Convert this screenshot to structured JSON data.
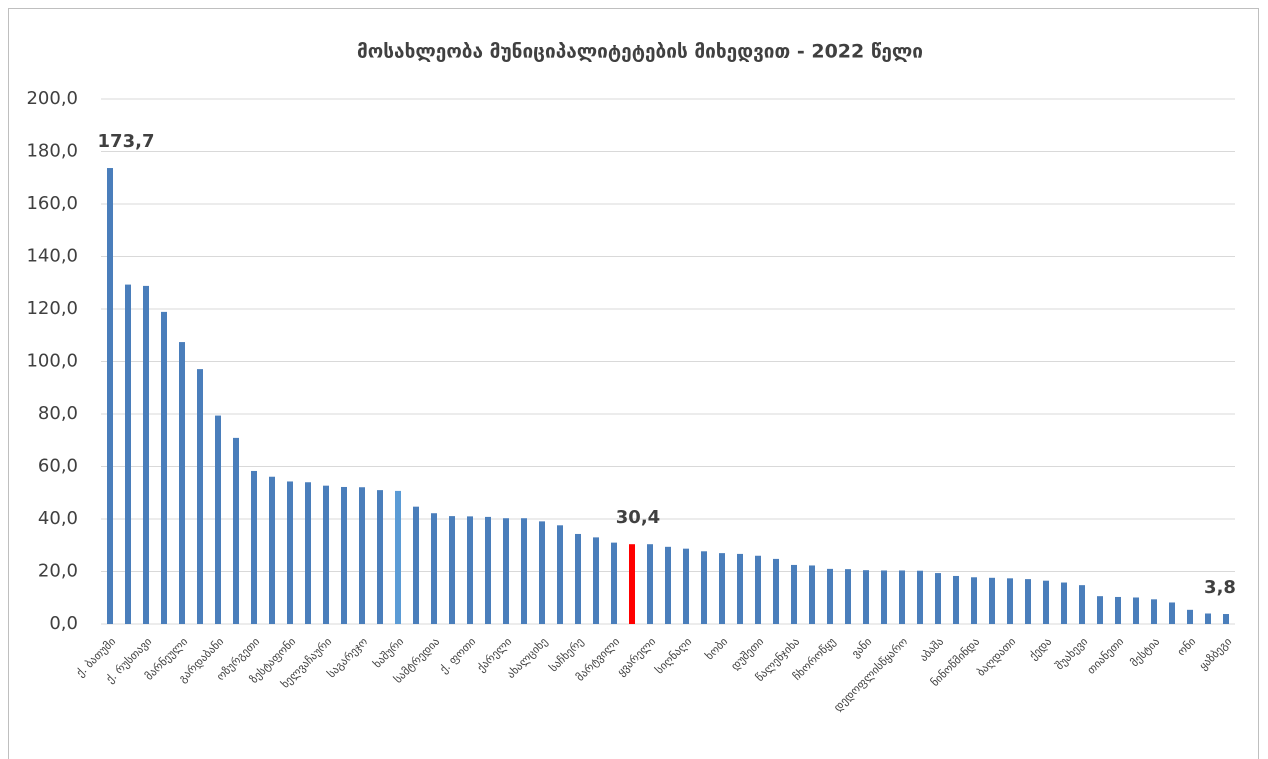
{
  "chart_data": {
    "type": "bar",
    "title": "მოსახლეობა მუნიციპალიტეტების მიხედვით - 2022 წელი",
    "categories": [
      "ქ. ბათუმი",
      null,
      "ქ. რუსთავი",
      null,
      "მარნეული",
      null,
      "გარდაბანი",
      null,
      "ოზურგეთი",
      null,
      "ზესტაფონი",
      null,
      "ხელვაჩაური",
      null,
      "საგარეჯო",
      null,
      "ხაშური",
      null,
      "სამტრედია",
      null,
      "ქ. ფოთი",
      null,
      "ქარელი",
      null,
      "ახალციხე",
      null,
      "საჩხერე",
      null,
      "მარტვილი",
      null,
      "ყვარელი",
      null,
      "სიღნაღი",
      null,
      "ხობი",
      null,
      "დუშეთი",
      null,
      "წალენჯიხა",
      null,
      "ჩხოროწყუ",
      null,
      "ვანი",
      null,
      "დედოფლისწყარო",
      null,
      "აბაშა",
      null,
      "ნინოწმინდა",
      null,
      "ბაღდათი",
      null,
      "ქედა",
      null,
      "შუახევი",
      null,
      "თიანეთი",
      null,
      "მესტია",
      null,
      "ონი",
      null,
      "ყაზბეგი"
    ],
    "values": [
      173.7,
      129.3,
      128.8,
      118.9,
      107.4,
      97.1,
      79.4,
      70.9,
      58.3,
      56.1,
      54.3,
      54.0,
      52.7,
      52.2,
      52.1,
      51.0,
      50.7,
      44.7,
      42.2,
      41.1,
      41.0,
      40.8,
      40.3,
      40.3,
      39.1,
      37.6,
      34.3,
      33.0,
      31.0,
      30.4,
      30.4,
      29.4,
      28.7,
      27.7,
      27.0,
      26.7,
      26.0,
      24.8,
      22.5,
      22.3,
      21.0,
      20.9,
      20.5,
      20.4,
      20.4,
      20.3,
      19.4,
      18.3,
      17.8,
      17.6,
      17.4,
      17.1,
      16.5,
      15.8,
      14.8,
      10.6,
      10.3,
      10.1,
      9.4,
      8.2,
      5.4,
      4.0,
      3.8
    ],
    "value_labels": [
      "173,7",
      null,
      null,
      null,
      null,
      null,
      null,
      null,
      null,
      null,
      null,
      null,
      null,
      null,
      null,
      null,
      null,
      null,
      null,
      null,
      null,
      null,
      null,
      null,
      null,
      null,
      null,
      null,
      null,
      "30,4",
      null,
      null,
      null,
      null,
      null,
      null,
      null,
      null,
      null,
      null,
      null,
      null,
      null,
      null,
      null,
      null,
      null,
      null,
      null,
      null,
      null,
      null,
      null,
      null,
      null,
      null,
      null,
      null,
      null,
      null,
      null,
      null,
      "3,8"
    ],
    "colors": [
      "#4a7ebb",
      "#4a7ebb",
      "#4a7ebb",
      "#4a7ebb",
      "#4a7ebb",
      "#4a7ebb",
      "#4a7ebb",
      "#4a7ebb",
      "#4a7ebb",
      "#4a7ebb",
      "#4a7ebb",
      "#4a7ebb",
      "#4a7ebb",
      "#4a7ebb",
      "#4a7ebb",
      "#4a7ebb",
      "#5b9bd5",
      "#4a7ebb",
      "#4a7ebb",
      "#4a7ebb",
      "#4a7ebb",
      "#4a7ebb",
      "#4a7ebb",
      "#4a7ebb",
      "#4a7ebb",
      "#4a7ebb",
      "#4a7ebb",
      "#4a7ebb",
      "#4a7ebb",
      "#ff0000",
      "#4a7ebb",
      "#4a7ebb",
      "#4a7ebb",
      "#4a7ebb",
      "#4a7ebb",
      "#4a7ebb",
      "#4a7ebb",
      "#4a7ebb",
      "#4a7ebb",
      "#4a7ebb",
      "#4a7ebb",
      "#4a7ebb",
      "#4a7ebb",
      "#4a7ebb",
      "#4a7ebb",
      "#4a7ebb",
      "#4a7ebb",
      "#4a7ebb",
      "#4a7ebb",
      "#4a7ebb",
      "#4a7ebb",
      "#4a7ebb",
      "#4a7ebb",
      "#4a7ebb",
      "#4a7ebb",
      "#4a7ebb",
      "#4a7ebb",
      "#4a7ebb",
      "#4a7ebb",
      "#4a7ebb",
      "#4a7ebb",
      "#4a7ebb",
      "#4a7ebb"
    ],
    "ylim": [
      0,
      200
    ],
    "yticks": [
      {
        "value": 0,
        "label": "0,0"
      },
      {
        "value": 20,
        "label": "20,0"
      },
      {
        "value": 40,
        "label": "40,0"
      },
      {
        "value": 60,
        "label": "60,0"
      },
      {
        "value": 80,
        "label": "80,0"
      },
      {
        "value": 100,
        "label": "100,0"
      },
      {
        "value": 120,
        "label": "120,0"
      },
      {
        "value": 140,
        "label": "140,0"
      },
      {
        "value": 160,
        "label": "160,0"
      },
      {
        "value": 180,
        "label": "180,0"
      },
      {
        "value": 200,
        "label": "200,0"
      }
    ],
    "grid": true
  }
}
